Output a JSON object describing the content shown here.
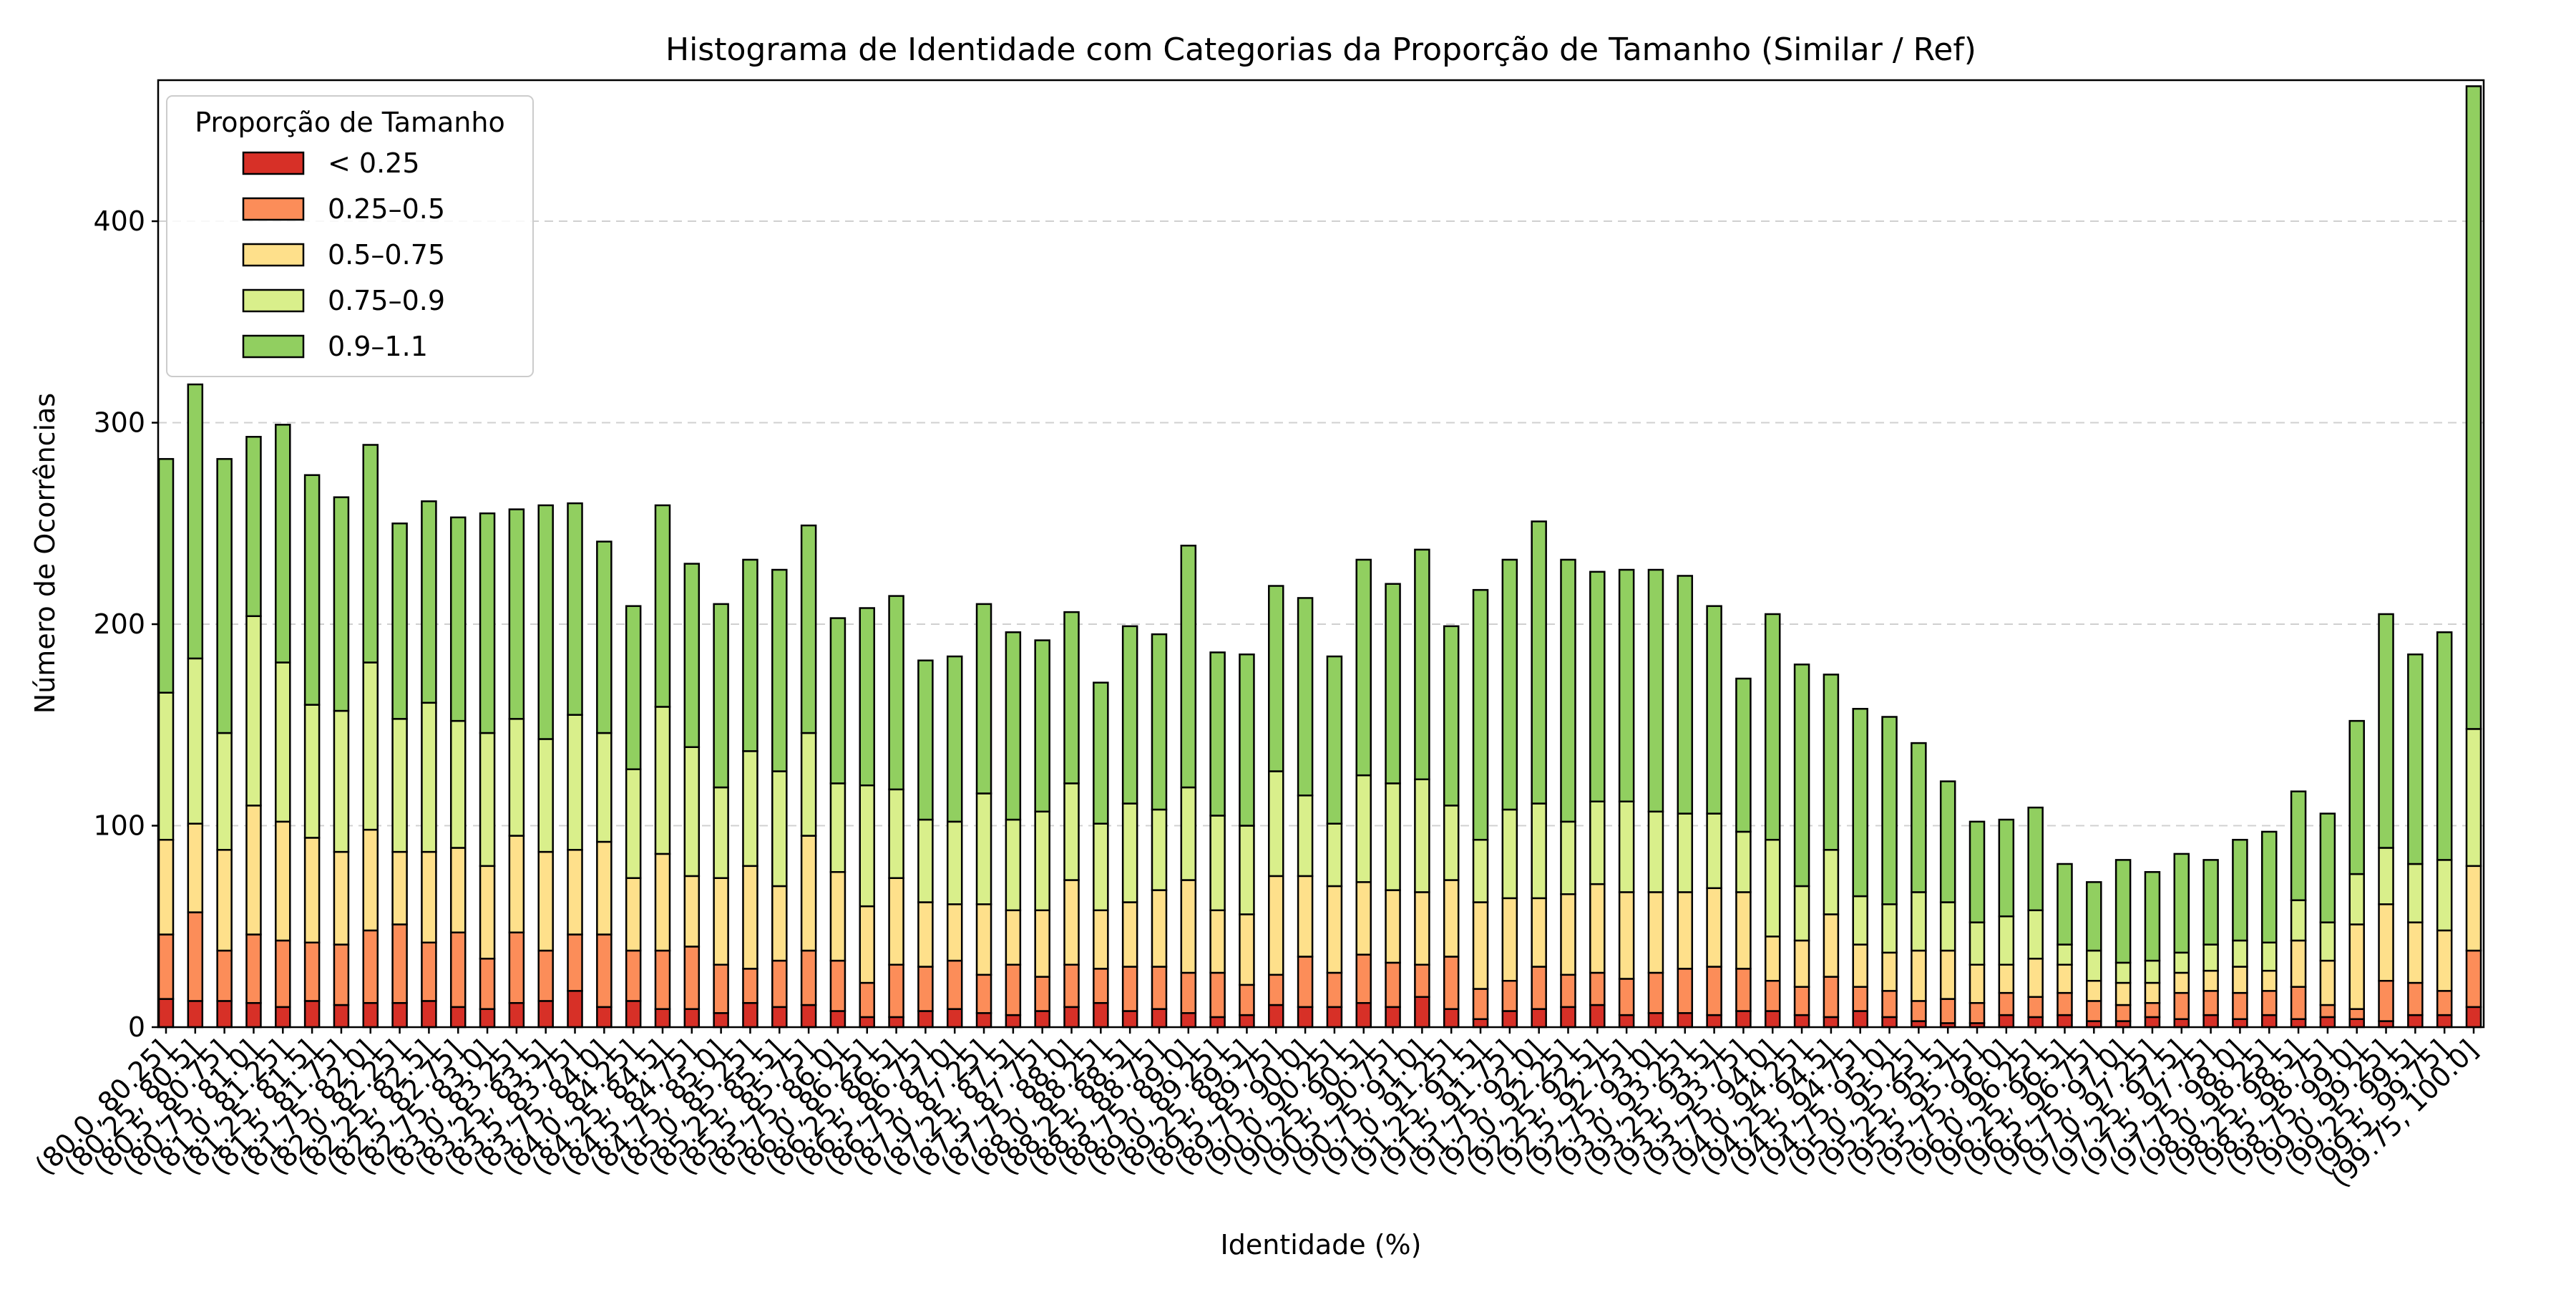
{
  "chart_data": {
    "type": "bar",
    "stacked": true,
    "title": "Histograma de Identidade com Categorias da Proporção de Tamanho (Similar / Ref)",
    "xlabel": "Identidade (%)",
    "ylabel": "Número de Ocorrências",
    "ylim": [
      0,
      470
    ],
    "yticks": [
      0,
      100,
      200,
      300,
      400
    ],
    "grid": "horizontal dashed",
    "legend_title": "Proporção de Tamanho",
    "legend_position": "top-left",
    "categories": [
      "(80.0, 80.25]",
      "(80.25, 80.5]",
      "(80.5, 80.75]",
      "(80.75, 81.0]",
      "(81.0, 81.25]",
      "(81.25, 81.5]",
      "(81.5, 81.75]",
      "(81.75, 82.0]",
      "(82.0, 82.25]",
      "(82.25, 82.5]",
      "(82.5, 82.75]",
      "(82.75, 83.0]",
      "(83.0, 83.25]",
      "(83.25, 83.5]",
      "(83.5, 83.75]",
      "(83.75, 84.0]",
      "(84.0, 84.25]",
      "(84.25, 84.5]",
      "(84.5, 84.75]",
      "(84.75, 85.0]",
      "(85.0, 85.25]",
      "(85.25, 85.5]",
      "(85.5, 85.75]",
      "(85.75, 86.0]",
      "(86.0, 86.25]",
      "(86.25, 86.5]",
      "(86.5, 86.75]",
      "(86.75, 87.0]",
      "(87.0, 87.25]",
      "(87.25, 87.5]",
      "(87.5, 87.75]",
      "(87.75, 88.0]",
      "(88.0, 88.25]",
      "(88.25, 88.5]",
      "(88.5, 88.75]",
      "(88.75, 89.0]",
      "(89.0, 89.25]",
      "(89.25, 89.5]",
      "(89.5, 89.75]",
      "(89.75, 90.0]",
      "(90.0, 90.25]",
      "(90.25, 90.5]",
      "(90.5, 90.75]",
      "(90.75, 91.0]",
      "(91.0, 91.25]",
      "(91.25, 91.5]",
      "(91.5, 91.75]",
      "(91.75, 92.0]",
      "(92.0, 92.25]",
      "(92.25, 92.5]",
      "(92.5, 92.75]",
      "(92.75, 93.0]",
      "(93.0, 93.25]",
      "(93.25, 93.5]",
      "(93.5, 93.75]",
      "(93.75, 94.0]",
      "(94.0, 94.25]",
      "(94.25, 94.5]",
      "(94.5, 94.75]",
      "(94.75, 95.0]",
      "(95.0, 95.25]",
      "(95.25, 95.5]",
      "(95.5, 95.75]",
      "(95.75, 96.0]",
      "(96.0, 96.25]",
      "(96.25, 96.5]",
      "(96.5, 96.75]",
      "(96.75, 97.0]",
      "(97.0, 97.25]",
      "(97.25, 97.5]",
      "(97.5, 97.75]",
      "(97.75, 98.0]",
      "(98.0, 98.25]",
      "(98.25, 98.5]",
      "(98.5, 98.75]",
      "(98.75, 99.0]",
      "(99.0, 99.25]",
      "(99.25, 99.5]",
      "(99.5, 99.75]",
      "(99.75, 100.0]"
    ],
    "series": [
      {
        "name": "< 0.25",
        "color": "#d73027",
        "values": [
          14,
          13,
          13,
          12,
          10,
          13,
          11,
          12,
          12,
          13,
          10,
          9,
          12,
          13,
          18,
          10,
          13,
          9,
          9,
          7,
          12,
          10,
          11,
          8,
          5,
          5,
          8,
          9,
          7,
          6,
          8,
          10,
          12,
          8,
          9,
          7,
          5,
          6,
          11,
          10,
          10,
          12,
          10,
          15,
          9,
          4,
          8,
          9,
          10,
          11,
          6,
          7,
          7,
          6,
          8,
          8,
          6,
          5,
          8,
          5,
          3,
          2,
          2,
          6,
          5,
          6,
          3,
          3,
          5,
          4,
          6,
          4,
          6,
          4,
          5,
          4,
          3,
          6,
          6,
          10
        ]
      },
      {
        "name": "0.25–0.5",
        "color": "#fc8d59",
        "values": [
          32,
          44,
          25,
          34,
          33,
          29,
          30,
          36,
          39,
          29,
          37,
          25,
          35,
          25,
          28,
          36,
          25,
          29,
          31,
          24,
          17,
          23,
          27,
          25,
          17,
          26,
          22,
          24,
          19,
          25,
          17,
          21,
          17,
          22,
          21,
          20,
          22,
          15,
          15,
          25,
          17,
          24,
          22,
          16,
          26,
          15,
          15,
          21,
          16,
          16,
          18,
          20,
          22,
          24,
          21,
          15,
          14,
          20,
          12,
          13,
          10,
          12,
          10,
          11,
          10,
          11,
          10,
          8,
          7,
          13,
          12,
          13,
          12,
          16,
          6,
          5,
          20,
          16,
          12,
          28
        ]
      },
      {
        "name": "0.5–0.75",
        "color": "#fee08b",
        "values": [
          47,
          44,
          50,
          64,
          59,
          52,
          46,
          50,
          36,
          45,
          42,
          46,
          48,
          49,
          42,
          46,
          36,
          48,
          35,
          43,
          51,
          37,
          57,
          44,
          38,
          43,
          32,
          28,
          35,
          27,
          33,
          42,
          29,
          32,
          38,
          46,
          31,
          35,
          49,
          40,
          43,
          36,
          36,
          36,
          38,
          43,
          41,
          34,
          40,
          44,
          43,
          40,
          38,
          39,
          38,
          22,
          23,
          31,
          21,
          19,
          25,
          24,
          19,
          14,
          19,
          14,
          10,
          11,
          10,
          10,
          10,
          13,
          10,
          23,
          22,
          42,
          38,
          30,
          30,
          42
        ]
      },
      {
        "name": "0.75–0.9",
        "color": "#d9ef8b",
        "values": [
          73,
          82,
          58,
          94,
          79,
          66,
          70,
          83,
          66,
          74,
          63,
          66,
          58,
          56,
          67,
          54,
          54,
          73,
          64,
          45,
          57,
          57,
          51,
          44,
          60,
          44,
          41,
          41,
          55,
          45,
          49,
          48,
          43,
          49,
          40,
          46,
          47,
          44,
          52,
          40,
          31,
          53,
          53,
          56,
          37,
          31,
          44,
          47,
          36,
          41,
          45,
          40,
          39,
          37,
          30,
          48,
          27,
          32,
          24,
          24,
          29,
          24,
          21,
          24,
          24,
          10,
          15,
          10,
          11,
          10,
          13,
          13,
          14,
          20,
          19,
          25,
          28,
          29,
          35,
          68
        ]
      },
      {
        "name": "0.9–1.1",
        "color": "#91cf60",
        "values": [
          116,
          136,
          136,
          89,
          118,
          114,
          106,
          108,
          97,
          100,
          101,
          109,
          104,
          116,
          105,
          95,
          81,
          100,
          91,
          91,
          95,
          100,
          103,
          82,
          88,
          96,
          79,
          82,
          94,
          93,
          85,
          85,
          70,
          88,
          87,
          120,
          81,
          85,
          92,
          98,
          83,
          107,
          99,
          114,
          89,
          124,
          124,
          140,
          130,
          114,
          115,
          120,
          118,
          103,
          76,
          112,
          110,
          87,
          93,
          93,
          74,
          60,
          50,
          48,
          51,
          40,
          34,
          51,
          44,
          49,
          42,
          50,
          55,
          54,
          54,
          76,
          116,
          104,
          113,
          319
        ]
      }
    ]
  }
}
